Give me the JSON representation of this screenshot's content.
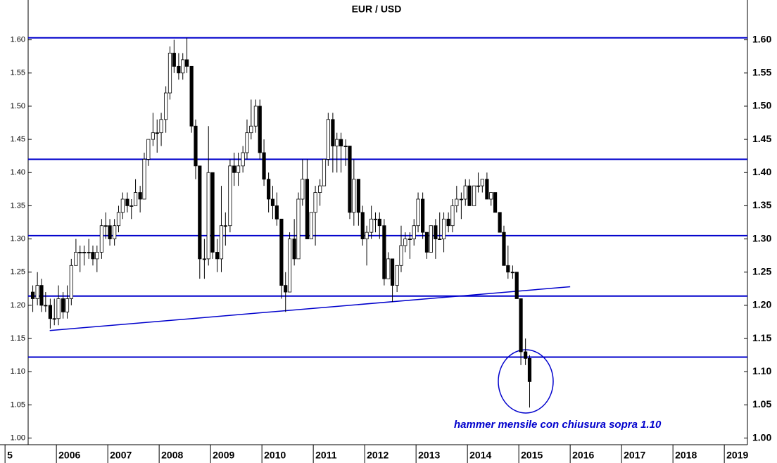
{
  "chart_data": {
    "type": "candlestick",
    "title": "EUR / USD",
    "annotation": "hammer mensile con chiusura sopra 1.10",
    "line_color": "#0000cc",
    "up_color": "#ffffff",
    "down_color": "#000000",
    "xlim": [
      2005.45,
      2019.45
    ],
    "xticks": [
      {
        "value": 2005,
        "label": "5"
      },
      2006,
      2007,
      2008,
      2009,
      2010,
      2011,
      2012,
      2013,
      2014,
      2015,
      2016,
      2017,
      2018,
      2019
    ],
    "ylim": [
      0.99,
      1.66
    ],
    "yticks": [
      {
        "value": 1,
        "label": "1.00"
      },
      1.05,
      {
        "value": 1.1,
        "label": "1.10"
      },
      1.15,
      {
        "value": 1.2,
        "label": "1.20"
      },
      1.25,
      {
        "value": 1.3,
        "label": "1.30"
      },
      1.35,
      {
        "value": 1.4,
        "label": "1.40"
      },
      1.45,
      {
        "value": 1.5,
        "label": "1.50"
      },
      1.55,
      {
        "value": 1.6,
        "label": "1.60"
      }
    ],
    "hlines": [
      1.603,
      1.42,
      1.305,
      1.214,
      1.122
    ],
    "trendline": {
      "x": [
        2005.87,
        2016.0
      ],
      "y": [
        1.162,
        1.228
      ]
    },
    "x": [
      2005.54,
      2005.63,
      2005.71,
      2005.79,
      2005.88,
      2005.96,
      2006.04,
      2006.13,
      2006.21,
      2006.29,
      2006.38,
      2006.46,
      2006.54,
      2006.63,
      2006.71,
      2006.79,
      2006.88,
      2006.96,
      2007.04,
      2007.13,
      2007.21,
      2007.29,
      2007.38,
      2007.46,
      2007.54,
      2007.63,
      2007.71,
      2007.79,
      2007.88,
      2007.96,
      2008.04,
      2008.13,
      2008.21,
      2008.29,
      2008.38,
      2008.46,
      2008.54,
      2008.63,
      2008.71,
      2008.79,
      2008.88,
      2008.96,
      2009.04,
      2009.13,
      2009.21,
      2009.29,
      2009.38,
      2009.46,
      2009.54,
      2009.63,
      2009.71,
      2009.79,
      2009.88,
      2009.96,
      2010.04,
      2010.13,
      2010.21,
      2010.29,
      2010.38,
      2010.46,
      2010.54,
      2010.63,
      2010.71,
      2010.79,
      2010.88,
      2010.96,
      2011.04,
      2011.13,
      2011.21,
      2011.29,
      2011.38,
      2011.46,
      2011.54,
      2011.63,
      2011.71,
      2011.79,
      2011.88,
      2011.96,
      2012.04,
      2012.13,
      2012.21,
      2012.29,
      2012.38,
      2012.46,
      2012.54,
      2012.63,
      2012.71,
      2012.79,
      2012.88,
      2012.96,
      2013.04,
      2013.13,
      2013.21,
      2013.29,
      2013.38,
      2013.46,
      2013.54,
      2013.63,
      2013.71,
      2013.79,
      2013.88,
      2013.96,
      2014.04,
      2014.13,
      2014.21,
      2014.29,
      2014.38,
      2014.46,
      2014.54,
      2014.63,
      2014.71,
      2014.79,
      2014.88,
      2014.96,
      2015.04,
      2015.13,
      2015.21
    ],
    "open": [
      1.22,
      1.21,
      1.23,
      1.2,
      1.2,
      1.18,
      1.18,
      1.21,
      1.19,
      1.21,
      1.26,
      1.28,
      1.28,
      1.28,
      1.28,
      1.27,
      1.28,
      1.32,
      1.32,
      1.3,
      1.32,
      1.34,
      1.36,
      1.35,
      1.35,
      1.37,
      1.36,
      1.42,
      1.45,
      1.46,
      1.46,
      1.48,
      1.52,
      1.58,
      1.56,
      1.55,
      1.57,
      1.56,
      1.47,
      1.41,
      1.27,
      1.27,
      1.4,
      1.28,
      1.27,
      1.32,
      1.32,
      1.41,
      1.4,
      1.41,
      1.43,
      1.46,
      1.47,
      1.5,
      1.43,
      1.39,
      1.36,
      1.35,
      1.33,
      1.23,
      1.22,
      1.3,
      1.27,
      1.36,
      1.39,
      1.3,
      1.34,
      1.37,
      1.38,
      1.42,
      1.48,
      1.44,
      1.45,
      1.44,
      1.44,
      1.34,
      1.39,
      1.34,
      1.3,
      1.31,
      1.33,
      1.33,
      1.32,
      1.24,
      1.27,
      1.23,
      1.26,
      1.29,
      1.3,
      1.3,
      1.32,
      1.36,
      1.31,
      1.28,
      1.32,
      1.3,
      1.3,
      1.33,
      1.32,
      1.35,
      1.36,
      1.36,
      1.38,
      1.35,
      1.38,
      1.38,
      1.39,
      1.36,
      1.37,
      1.34,
      1.31,
      1.26,
      1.25,
      1.25,
      1.21,
      1.13,
      1.12
    ],
    "high": [
      1.23,
      1.25,
      1.24,
      1.22,
      1.21,
      1.21,
      1.23,
      1.22,
      1.23,
      1.27,
      1.3,
      1.29,
      1.29,
      1.3,
      1.29,
      1.29,
      1.33,
      1.34,
      1.33,
      1.33,
      1.35,
      1.37,
      1.37,
      1.36,
      1.39,
      1.38,
      1.43,
      1.45,
      1.49,
      1.48,
      1.49,
      1.53,
      1.59,
      1.6,
      1.58,
      1.58,
      1.603,
      1.56,
      1.48,
      1.41,
      1.3,
      1.47,
      1.4,
      1.3,
      1.38,
      1.34,
      1.42,
      1.43,
      1.43,
      1.44,
      1.48,
      1.51,
      1.51,
      1.51,
      1.45,
      1.4,
      1.38,
      1.37,
      1.33,
      1.25,
      1.31,
      1.33,
      1.37,
      1.42,
      1.42,
      1.34,
      1.38,
      1.39,
      1.42,
      1.49,
      1.49,
      1.46,
      1.46,
      1.45,
      1.44,
      1.42,
      1.39,
      1.35,
      1.32,
      1.35,
      1.34,
      1.34,
      1.33,
      1.28,
      1.27,
      1.26,
      1.32,
      1.31,
      1.31,
      1.33,
      1.37,
      1.37,
      1.31,
      1.32,
      1.33,
      1.34,
      1.34,
      1.34,
      1.36,
      1.38,
      1.37,
      1.39,
      1.39,
      1.38,
      1.4,
      1.39,
      1.4,
      1.37,
      1.37,
      1.34,
      1.32,
      1.29,
      1.26,
      1.25,
      1.21,
      1.15,
      1.125
    ],
    "low": [
      1.19,
      1.2,
      1.19,
      1.19,
      1.165,
      1.17,
      1.17,
      1.18,
      1.18,
      1.2,
      1.26,
      1.25,
      1.26,
      1.27,
      1.26,
      1.25,
      1.27,
      1.3,
      1.29,
      1.29,
      1.31,
      1.33,
      1.34,
      1.33,
      1.35,
      1.34,
      1.36,
      1.41,
      1.44,
      1.43,
      1.44,
      1.46,
      1.51,
      1.55,
      1.54,
      1.54,
      1.55,
      1.46,
      1.39,
      1.24,
      1.24,
      1.26,
      1.27,
      1.25,
      1.25,
      1.29,
      1.31,
      1.38,
      1.38,
      1.4,
      1.42,
      1.45,
      1.46,
      1.42,
      1.38,
      1.34,
      1.33,
      1.32,
      1.21,
      1.19,
      1.22,
      1.26,
      1.27,
      1.35,
      1.3,
      1.3,
      1.29,
      1.35,
      1.38,
      1.41,
      1.4,
      1.4,
      1.4,
      1.41,
      1.33,
      1.32,
      1.32,
      1.29,
      1.26,
      1.3,
      1.31,
      1.3,
      1.23,
      1.24,
      1.205,
      1.22,
      1.25,
      1.28,
      1.27,
      1.29,
      1.31,
      1.3,
      1.27,
      1.28,
      1.27,
      1.3,
      1.28,
      1.31,
      1.31,
      1.34,
      1.33,
      1.35,
      1.35,
      1.35,
      1.37,
      1.37,
      1.36,
      1.35,
      1.34,
      1.31,
      1.26,
      1.24,
      1.24,
      1.21,
      1.11,
      1.11,
      1.046
    ],
    "close": [
      1.21,
      1.23,
      1.2,
      1.2,
      1.18,
      1.18,
      1.21,
      1.19,
      1.21,
      1.26,
      1.28,
      1.28,
      1.28,
      1.28,
      1.27,
      1.28,
      1.32,
      1.32,
      1.3,
      1.32,
      1.34,
      1.36,
      1.35,
      1.35,
      1.37,
      1.36,
      1.42,
      1.45,
      1.46,
      1.46,
      1.48,
      1.52,
      1.58,
      1.56,
      1.55,
      1.57,
      1.56,
      1.47,
      1.41,
      1.27,
      1.27,
      1.4,
      1.28,
      1.27,
      1.32,
      1.32,
      1.41,
      1.4,
      1.41,
      1.43,
      1.46,
      1.47,
      1.5,
      1.43,
      1.39,
      1.36,
      1.35,
      1.33,
      1.23,
      1.22,
      1.3,
      1.27,
      1.36,
      1.39,
      1.3,
      1.34,
      1.37,
      1.38,
      1.42,
      1.48,
      1.44,
      1.45,
      1.44,
      1.44,
      1.34,
      1.39,
      1.34,
      1.3,
      1.31,
      1.33,
      1.33,
      1.32,
      1.24,
      1.27,
      1.23,
      1.26,
      1.29,
      1.3,
      1.3,
      1.32,
      1.36,
      1.31,
      1.28,
      1.32,
      1.3,
      1.3,
      1.33,
      1.32,
      1.35,
      1.36,
      1.36,
      1.38,
      1.35,
      1.38,
      1.38,
      1.39,
      1.36,
      1.37,
      1.34,
      1.31,
      1.26,
      1.25,
      1.25,
      1.21,
      1.13,
      1.12,
      1.085
    ]
  }
}
